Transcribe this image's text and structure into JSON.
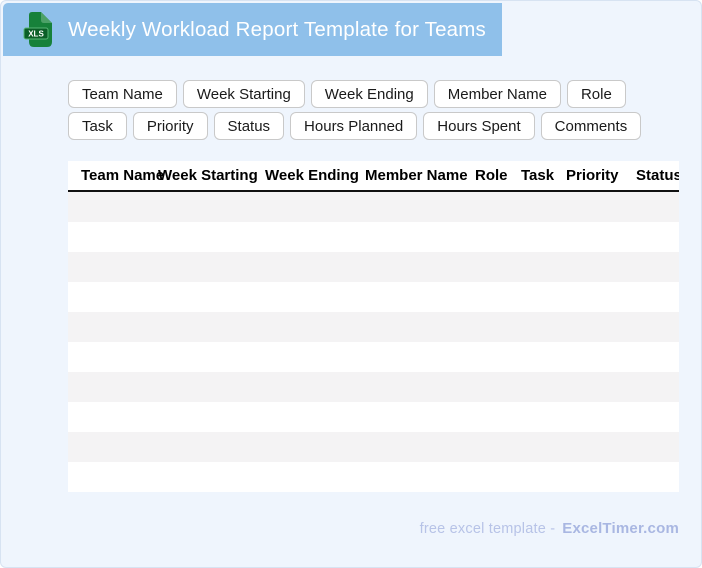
{
  "colors": {
    "banner": "#8fc0ea",
    "page-bg": "#eff5fd",
    "page-border": "#d7e3f2",
    "stripe": "#f4f3f4",
    "header-rule": "#111111",
    "chip-border": "#c9c9c9",
    "icon-green": "#17813a",
    "icon-fold": "#4da168",
    "icon-label": "#0b5f27",
    "footer-muted": "#b7c3e7",
    "footer-brand": "#a9b7e2"
  },
  "header": {
    "title": "Weekly Workload Report Template for Teams",
    "file_badge": "XLS"
  },
  "chips": [
    "Team Name",
    "Week Starting",
    "Week Ending",
    "Member Name",
    "Role",
    "Task",
    "Priority",
    "Status",
    "Hours Planned",
    "Hours Spent",
    "Comments"
  ],
  "table": {
    "columns": [
      "Team Name",
      "Week Starting",
      "Week Ending",
      "Member Name",
      "Role",
      "Task",
      "Priority",
      "Status"
    ],
    "empty_row_count": 10
  },
  "footer": {
    "tagline": "free excel template -",
    "brand": "ExcelTimer.com"
  }
}
